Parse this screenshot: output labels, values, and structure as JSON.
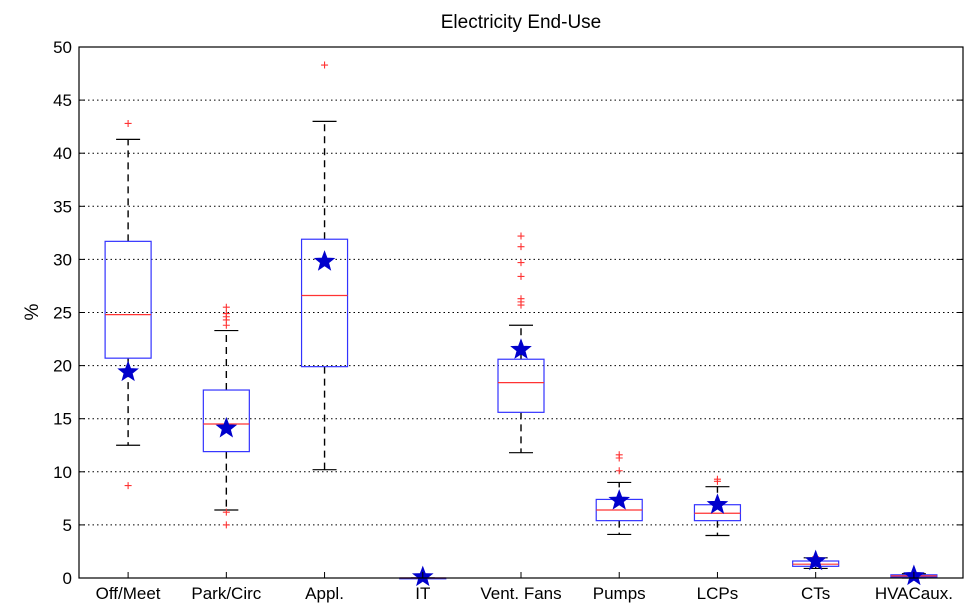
{
  "chart_data": {
    "type": "box",
    "title": "Electricity End-Use",
    "xlabel": "",
    "ylabel": "%",
    "ylim": [
      0,
      50
    ],
    "yticks": [
      0,
      5,
      10,
      15,
      20,
      25,
      30,
      35,
      40,
      45,
      50
    ],
    "grid": "horizontal dotted",
    "legend": "none",
    "colors": {
      "box": "#3333ff",
      "median": "#ff3333",
      "whisker": "#000000",
      "outlier": "#ff3333",
      "star": "#0000cc"
    },
    "categories": [
      "Off/Meet",
      "Park/Circ",
      "Appl.",
      "IT",
      "Vent. Fans",
      "Pumps",
      "LCPs",
      "CTs",
      "HVACaux."
    ],
    "boxes": [
      {
        "category": "Off/Meet",
        "min": 12.5,
        "q1": 20.7,
        "median": 24.8,
        "q3": 31.7,
        "max": 41.3,
        "outliers": [
          8.7,
          42.8
        ],
        "star": 19.4
      },
      {
        "category": "Park/Circ",
        "min": 6.4,
        "q1": 11.9,
        "median": 14.5,
        "q3": 17.7,
        "max": 23.3,
        "outliers": [
          5.0,
          6.2,
          23.8,
          24.3,
          24.6,
          24.9,
          25.5
        ],
        "star": 14.1
      },
      {
        "category": "Appl.",
        "min": 10.2,
        "q1": 19.9,
        "median": 26.6,
        "q3": 31.9,
        "max": 43.0,
        "outliers": [
          48.3
        ],
        "star": 29.8
      },
      {
        "category": "IT",
        "min": 0.0,
        "q1": 0.0,
        "median": 0.0,
        "q3": 0.0,
        "max": 0.0,
        "outliers": [],
        "star": 0.1
      },
      {
        "category": "Vent. Fans",
        "min": 11.8,
        "q1": 15.6,
        "median": 18.4,
        "q3": 20.6,
        "max": 23.8,
        "outliers": [
          25.7,
          26.0,
          26.3,
          28.4,
          29.7,
          31.2,
          32.2
        ],
        "star": 21.5
      },
      {
        "category": "Pumps",
        "min": 4.1,
        "q1": 5.4,
        "median": 6.4,
        "q3": 7.4,
        "max": 9.0,
        "outliers": [
          10.1,
          11.3,
          11.6
        ],
        "star": 7.3
      },
      {
        "category": "LCPs",
        "min": 4.0,
        "q1": 5.4,
        "median": 6.1,
        "q3": 6.9,
        "max": 8.6,
        "outliers": [
          9.1,
          9.3
        ],
        "star": 6.9
      },
      {
        "category": "CTs",
        "min": 0.9,
        "q1": 1.1,
        "median": 1.3,
        "q3": 1.6,
        "max": 1.9,
        "outliers": [
          2.0
        ],
        "star": 1.6
      },
      {
        "category": "HVACaux.",
        "min": 0.0,
        "q1": 0.1,
        "median": 0.2,
        "q3": 0.3,
        "max": 0.4,
        "outliers": [],
        "star": 0.2
      }
    ]
  }
}
